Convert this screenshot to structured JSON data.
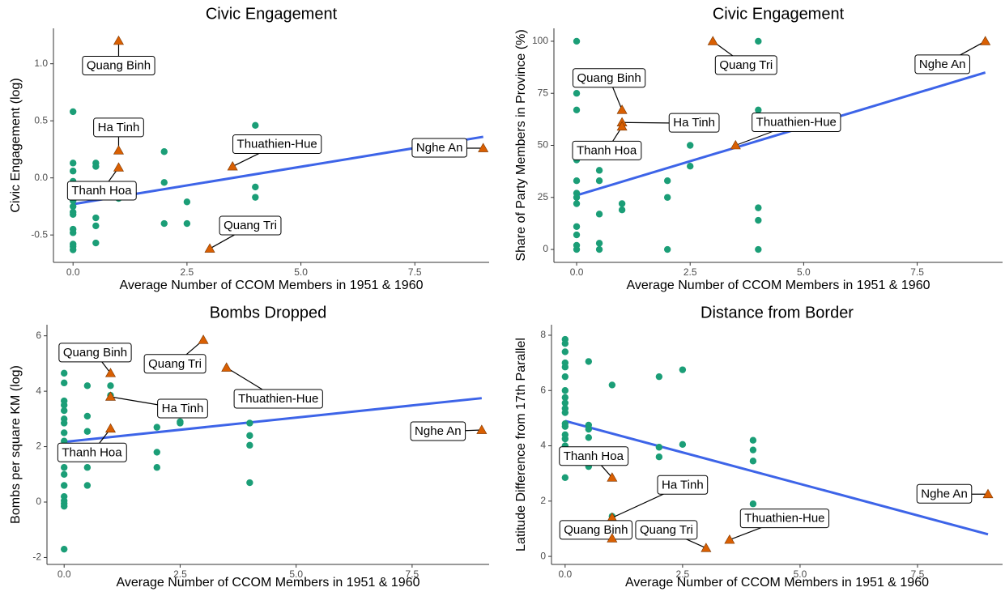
{
  "chart_data": [
    {
      "type": "scatter",
      "title": "Civic Engagement",
      "x_label": "Average Number of CCOM Members in 1951 & 1960",
      "y_label": "Civic Engagement (log)",
      "xlim": [
        -0.43,
        9.13
      ],
      "ylim": [
        -0.74,
        1.31
      ],
      "xticks": [
        {
          "value": 0,
          "label": "0.0"
        },
        2.5,
        {
          "value": 5,
          "label": "5.0"
        },
        7.5
      ],
      "yticks": [
        -0.5,
        {
          "value": 0,
          "label": "0.0"
        },
        0.5,
        {
          "value": 1,
          "label": "1.0"
        }
      ],
      "series": [
        {
          "mark": "circle",
          "color": "#1b9e77",
          "x": [
            0,
            0,
            0,
            0,
            0,
            0,
            0,
            0,
            0,
            0,
            0,
            0,
            0,
            0,
            0.5,
            0.5,
            0.5,
            0.5,
            0.5,
            1,
            2,
            2,
            2,
            2.5,
            2.5,
            4,
            4,
            4
          ],
          "values": [
            0.58,
            0.13,
            0.06,
            -0.03,
            -0.1,
            -0.2,
            -0.25,
            -0.3,
            -0.32,
            -0.45,
            -0.48,
            -0.58,
            -0.6,
            -0.63,
            0.13,
            0.1,
            -0.35,
            -0.42,
            -0.57,
            -0.18,
            0.23,
            -0.04,
            -0.4,
            -0.21,
            -0.4,
            0.46,
            -0.08,
            -0.17
          ]
        },
        {
          "mark": "triangle",
          "color": "#d95f02",
          "labels": [
            "Quang Binh",
            "Ha Tinh",
            "Thanh Hoa",
            "Thuathien-Hue",
            "Quang Tri",
            "Nghe An"
          ],
          "x": [
            1,
            1,
            1,
            3.5,
            3,
            9
          ],
          "values": [
            1.2,
            0.24,
            0.09,
            0.1,
            -0.62,
            0.26
          ]
        },
        {
          "mark": "line",
          "color": "#3d64e8",
          "x": [
            0,
            9
          ],
          "values": [
            -0.23,
            0.36
          ]
        }
      ]
    },
    {
      "type": "scatter",
      "title": "Civic Engagement",
      "x_label": "Average Number of CCOM Members in 1951 & 1960",
      "y_label": "Share of Party Members in Province (%)",
      "xlim": [
        -0.5,
        9.38
      ],
      "ylim": [
        -6.2,
        106.2
      ],
      "xticks": [
        {
          "value": 0,
          "label": "0.0"
        },
        2.5,
        {
          "value": 5,
          "label": "5.0"
        },
        7.5
      ],
      "yticks": [
        0,
        25,
        50,
        75,
        100
      ],
      "series": [
        {
          "mark": "circle",
          "color": "#1b9e77",
          "x": [
            0,
            0,
            0,
            0,
            0,
            0,
            0,
            0,
            0,
            0,
            0,
            0,
            0.5,
            0.5,
            0.5,
            0.5,
            0.5,
            1,
            1,
            2,
            2,
            2,
            2.5,
            2.5,
            4,
            4,
            4,
            4,
            4
          ],
          "values": [
            100,
            75,
            67,
            43,
            33,
            27,
            25,
            22,
            11,
            7,
            2,
            0,
            38,
            33,
            17,
            3,
            0,
            22,
            19,
            33,
            25,
            0,
            50,
            40,
            100,
            67,
            20,
            14,
            0
          ]
        },
        {
          "mark": "triangle",
          "color": "#d95f02",
          "labels": [
            "Quang Tri",
            "Nghe An",
            "Quang Binh",
            "Ha Tinh",
            "Thanh Hoa",
            "Thuathien-Hue"
          ],
          "x": [
            3,
            9,
            1,
            1,
            1,
            3.5
          ],
          "values": [
            100,
            100,
            67,
            61,
            59,
            50
          ]
        },
        {
          "mark": "line",
          "color": "#3d64e8",
          "x": [
            0,
            9
          ],
          "values": [
            26,
            85
          ]
        }
      ]
    },
    {
      "type": "scatter",
      "title": "Bombs Dropped",
      "x_label": "Average Number of CCOM Members in 1951 & 1960",
      "y_label": "Bombs per square KM (log)",
      "xlim": [
        -0.37,
        9.16
      ],
      "ylim": [
        -2.25,
        6.4
      ],
      "xticks": [
        {
          "value": 0,
          "label": "0.0"
        },
        2.5,
        {
          "value": 5,
          "label": "5.0"
        },
        7.5
      ],
      "yticks": [
        -2,
        0,
        2,
        4,
        6
      ],
      "series": [
        {
          "mark": "circle",
          "color": "#1b9e77",
          "x": [
            0,
            0,
            0,
            0,
            0,
            0,
            0,
            0,
            0,
            0,
            0,
            0,
            0,
            0,
            0,
            0,
            0,
            0,
            0,
            0.5,
            0.5,
            0.5,
            0.5,
            0.5,
            0.5,
            1,
            1,
            2,
            2,
            2,
            2.5,
            2.5,
            4,
            4,
            4,
            4
          ],
          "values": [
            4.65,
            4.3,
            3.65,
            3.5,
            3.3,
            3.0,
            2.85,
            2.5,
            2.2,
            1.95,
            1.6,
            1.25,
            1.0,
            0.6,
            0.2,
            0.05,
            -0.05,
            -0.15,
            -1.7,
            4.2,
            3.1,
            2.55,
            1.7,
            1.25,
            0.6,
            4.2,
            3.85,
            2.7,
            1.8,
            1.25,
            2.9,
            2.85,
            2.85,
            2.4,
            2.05,
            0.7
          ]
        },
        {
          "mark": "triangle",
          "color": "#d95f02",
          "labels": [
            "Quang Binh",
            "Quang Tri",
            "Thuathien-Hue",
            "Ha Tinh",
            "Thanh Hoa",
            "Nghe An"
          ],
          "x": [
            1,
            3,
            3.5,
            1,
            1,
            9
          ],
          "values": [
            4.65,
            5.85,
            4.85,
            3.8,
            2.65,
            2.6
          ]
        },
        {
          "mark": "line",
          "color": "#3d64e8",
          "x": [
            0,
            9
          ],
          "values": [
            2.17,
            3.75
          ]
        }
      ]
    },
    {
      "type": "scatter",
      "title": "Distance from Border",
      "x_label": "Average Number of CCOM Members in 1951 & 1960",
      "y_label": "Latitude Difference from 17th Parallel",
      "xlim": [
        -0.29,
        9.31
      ],
      "ylim": [
        -0.29,
        8.38
      ],
      "xticks": [
        {
          "value": 0,
          "label": "0.0"
        },
        2.5,
        {
          "value": 5,
          "label": "5.0"
        },
        7.5
      ],
      "yticks": [
        0,
        2,
        4,
        6,
        8
      ],
      "series": [
        {
          "mark": "circle",
          "color": "#1b9e77",
          "x": [
            0,
            0,
            0,
            0,
            0,
            0,
            0,
            0,
            0,
            0,
            0,
            0,
            0,
            0,
            0,
            0,
            0,
            0.5,
            0.5,
            0.5,
            0.5,
            0.5,
            1,
            1,
            2,
            2,
            2,
            2.5,
            2.5,
            4,
            4,
            4,
            4
          ],
          "values": [
            7.85,
            7.7,
            7.4,
            7.0,
            6.85,
            6.5,
            6.0,
            5.75,
            5.55,
            5.35,
            5.2,
            4.8,
            4.7,
            4.4,
            4.25,
            4.0,
            2.85,
            7.05,
            4.75,
            4.6,
            4.3,
            3.25,
            6.2,
            1.45,
            6.5,
            3.95,
            3.6,
            6.75,
            4.05,
            4.2,
            3.85,
            3.45,
            1.9
          ]
        },
        {
          "mark": "triangle",
          "color": "#d95f02",
          "labels": [
            "Thanh Hoa",
            "Ha Tinh",
            "Quang Binh",
            "Quang Tri",
            "Thuathien-Hue",
            "Nghe An"
          ],
          "x": [
            1,
            1,
            1,
            3,
            3.5,
            9
          ],
          "values": [
            2.85,
            1.4,
            0.65,
            0.3,
            0.6,
            2.25
          ]
        },
        {
          "mark": "line",
          "color": "#3d64e8",
          "x": [
            0,
            9
          ],
          "values": [
            4.9,
            0.8
          ]
        }
      ]
    }
  ]
}
